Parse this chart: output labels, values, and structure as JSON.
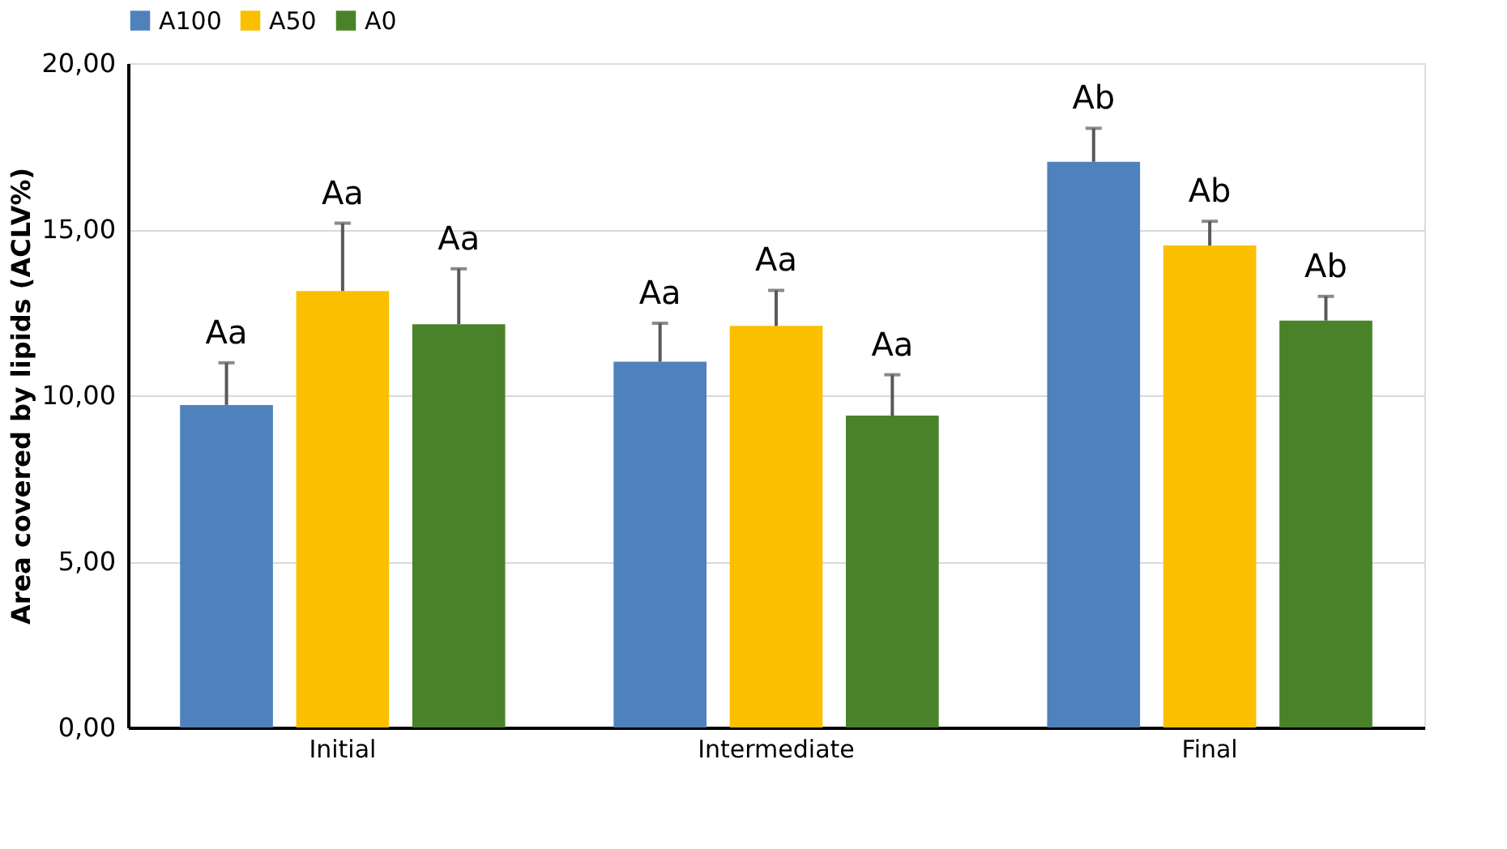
{
  "chart_data": {
    "type": "bar",
    "ylabel": "Area covered by lipids (ACLV%)",
    "categories": [
      "Initial",
      "Intermediate",
      "Final"
    ],
    "series": [
      {
        "name": "A100",
        "color": "#4f81bd",
        "values": [
          9.71,
          11.01,
          17.03
        ],
        "errors": [
          [
            9.71,
            10.98
          ],
          [
            11.01,
            12.17
          ],
          [
            17.03,
            18.04
          ]
        ],
        "value_labels": [
          "Aa",
          "Aa",
          "Ab"
        ]
      },
      {
        "name": "A50",
        "color": "#fac000",
        "values": [
          13.14,
          12.09,
          14.51
        ],
        "errors": [
          [
            13.14,
            15.18
          ],
          [
            12.09,
            13.16
          ],
          [
            14.51,
            15.24
          ]
        ],
        "value_labels": [
          "Aa",
          "Aa",
          "Ab"
        ]
      },
      {
        "name": "A0",
        "color": "#4a8229",
        "values": [
          12.14,
          9.39,
          12.25
        ],
        "errors": [
          [
            12.14,
            13.81
          ],
          [
            9.39,
            10.62
          ],
          [
            12.25,
            12.98
          ]
        ],
        "value_labels": [
          "Aa",
          "Aa",
          "Ab"
        ]
      }
    ],
    "ylim": [
      0,
      20
    ],
    "yticks": [
      {
        "value": 0,
        "label": "0,00"
      },
      {
        "value": 5,
        "label": "5,00"
      },
      {
        "value": 10,
        "label": "10,00"
      },
      {
        "value": 15,
        "label": "15,00"
      },
      {
        "value": 20,
        "label": "20,00"
      }
    ],
    "grid": "y",
    "legend": "top"
  }
}
